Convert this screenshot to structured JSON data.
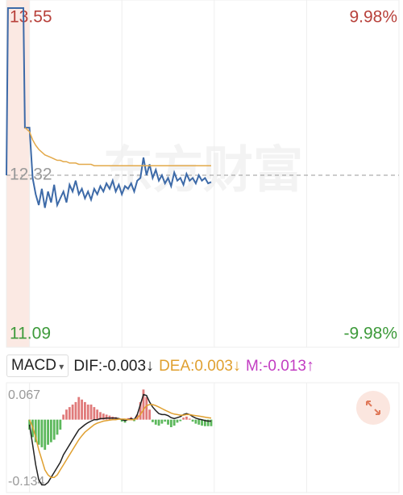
{
  "chart_data": [
    {
      "type": "line",
      "watermark": "东方财富",
      "xlim": [
        -15,
        240
      ],
      "xgrid": [
        0,
        60,
        120,
        180,
        240
      ],
      "ylim": [
        11.09,
        13.55
      ],
      "yticks": [
        13.55,
        12.32,
        11.09
      ],
      "ref_line": 12.32,
      "y2lim": [
        -9.98,
        9.98
      ],
      "y2ticks": [
        {
          "value": 9.98,
          "label": "9.98%"
        },
        {
          "value": -9.98,
          "label": "-9.98%"
        }
      ],
      "x": [
        -15,
        -14,
        -4,
        -3,
        0,
        2,
        4,
        6,
        8,
        10,
        12,
        14,
        16,
        18,
        20,
        22,
        24,
        26,
        28,
        30,
        32,
        34,
        36,
        38,
        40,
        42,
        44,
        46,
        48,
        50,
        52,
        54,
        56,
        58,
        60,
        62,
        64,
        66,
        68,
        70,
        72,
        74,
        76,
        78,
        80,
        82,
        84,
        86,
        88,
        90,
        92,
        94,
        96,
        98,
        100,
        102,
        104,
        106,
        108,
        110,
        112,
        114,
        116,
        118
      ],
      "series": [
        {
          "color": "#3d6aa8",
          "values": [
            12.32,
            13.55,
            13.55,
            12.67,
            12.67,
            12.3,
            12.18,
            12.1,
            12.22,
            12.08,
            12.2,
            12.12,
            12.25,
            12.1,
            12.15,
            12.2,
            12.12,
            12.25,
            12.2,
            12.28,
            12.18,
            12.22,
            12.15,
            12.2,
            12.14,
            12.22,
            12.18,
            12.24,
            12.2,
            12.26,
            12.22,
            12.28,
            12.2,
            12.25,
            12.18,
            12.24,
            12.22,
            12.26,
            12.2,
            12.28,
            12.3,
            12.45,
            12.32,
            12.4,
            12.3,
            12.36,
            12.28,
            12.32,
            12.26,
            12.3,
            12.24,
            12.34,
            12.28,
            12.3,
            12.25,
            12.33,
            12.28,
            12.3,
            12.26,
            12.32,
            12.28,
            12.3,
            12.26,
            12.27
          ]
        },
        {
          "color": "#e3a94a",
          "values": [
            null,
            null,
            null,
            12.67,
            12.64,
            12.58,
            12.54,
            12.51,
            12.49,
            12.47,
            12.46,
            12.45,
            12.44,
            12.43,
            12.43,
            12.42,
            12.42,
            12.41,
            12.41,
            12.41,
            12.4,
            12.4,
            12.4,
            12.4,
            12.4,
            12.39,
            12.39,
            12.39,
            12.39,
            12.39,
            12.39,
            12.39,
            12.39,
            12.39,
            12.39,
            12.39,
            12.39,
            12.39,
            12.39,
            12.39,
            12.39,
            12.39,
            12.39,
            12.39,
            12.39,
            12.39,
            12.39,
            12.39,
            12.39,
            12.39,
            12.39,
            12.39,
            12.39,
            12.39,
            12.39,
            12.39,
            12.39,
            12.39,
            12.39,
            12.39,
            12.39,
            12.39,
            12.39,
            12.39
          ]
        }
      ]
    },
    {
      "type": "macd",
      "indicator": "MACD",
      "legend": [
        {
          "text": "DIF:-0.003",
          "arrow": "↓",
          "color": "#222222"
        },
        {
          "text": "DEA:0.003",
          "arrow": "↓",
          "color": "#e0a030"
        },
        {
          "text": "M:-0.013",
          "arrow": "↑",
          "color": "#c23cc2"
        }
      ],
      "xlim": [
        -15,
        240
      ],
      "xgrid": [
        0,
        60,
        120,
        180,
        240
      ],
      "ylim": [
        -0.134,
        0.067
      ],
      "yticks": [
        0.067,
        -0.134
      ],
      "x": [
        0,
        2,
        4,
        6,
        8,
        10,
        12,
        14,
        16,
        18,
        20,
        22,
        24,
        26,
        28,
        30,
        32,
        34,
        36,
        38,
        40,
        42,
        44,
        46,
        48,
        50,
        52,
        54,
        56,
        58,
        60,
        62,
        64,
        66,
        68,
        70,
        72,
        74,
        76,
        78,
        80,
        82,
        84,
        86,
        88,
        90,
        92,
        94,
        96,
        98,
        100,
        102,
        104,
        106,
        108,
        110,
        112,
        114,
        116,
        118
      ],
      "series": [
        {
          "name": "M",
          "up_color": "#e07a7a",
          "down_color": "#5cb85c",
          "values": [
            -0.02,
            -0.035,
            -0.045,
            -0.05,
            -0.055,
            -0.06,
            -0.05,
            -0.045,
            -0.04,
            -0.03,
            -0.02,
            0.01,
            0.02,
            0.025,
            0.03,
            0.035,
            0.045,
            0.04,
            0.035,
            0.03,
            0.03,
            0.025,
            0.02,
            0.015,
            0.012,
            0.01,
            0.008,
            0.006,
            0.005,
            0.003,
            -0.004,
            -0.006,
            0.003,
            0.005,
            -0.003,
            0.01,
            0.035,
            0.06,
            0.045,
            0.02,
            -0.005,
            -0.01,
            -0.012,
            -0.008,
            -0.004,
            -0.01,
            -0.015,
            -0.012,
            -0.006,
            -0.003,
            0.004,
            0.006,
            0.002,
            -0.004,
            -0.008,
            -0.01,
            -0.012,
            -0.013,
            -0.013,
            -0.013
          ]
        },
        {
          "name": "DIF",
          "color": "#222222",
          "values": [
            -0.01,
            -0.05,
            -0.09,
            -0.12,
            -0.13,
            -0.13,
            -0.125,
            -0.115,
            -0.105,
            -0.095,
            -0.085,
            -0.07,
            -0.06,
            -0.05,
            -0.04,
            -0.03,
            -0.02,
            -0.015,
            -0.01,
            -0.006,
            -0.003,
            0,
            0,
            0.002,
            0.002,
            0.003,
            0.003,
            0.003,
            0.003,
            0.002,
            0,
            -0.002,
            0,
            0.002,
            0,
            0.01,
            0.03,
            0.05,
            0.048,
            0.035,
            0.025,
            0.018,
            0.012,
            0.01,
            0.01,
            0.008,
            0.004,
            0.002,
            0.004,
            0.006,
            0.01,
            0.012,
            0.01,
            0.006,
            0.003,
            0.001,
            0,
            -0.002,
            -0.003,
            -0.003
          ]
        },
        {
          "name": "DEA",
          "color": "#e0a030",
          "values": [
            0,
            -0.015,
            -0.035,
            -0.06,
            -0.08,
            -0.1,
            -0.11,
            -0.115,
            -0.115,
            -0.11,
            -0.1,
            -0.09,
            -0.08,
            -0.07,
            -0.06,
            -0.05,
            -0.04,
            -0.032,
            -0.025,
            -0.02,
            -0.015,
            -0.01,
            -0.007,
            -0.005,
            -0.003,
            -0.002,
            -0.001,
            0,
            0,
            0.001,
            0.001,
            0.001,
            0,
            0,
            0,
            0.003,
            0.01,
            0.02,
            0.028,
            0.03,
            0.03,
            0.028,
            0.025,
            0.022,
            0.019,
            0.016,
            0.013,
            0.011,
            0.01,
            0.009,
            0.009,
            0.01,
            0.01,
            0.009,
            0.008,
            0.007,
            0.006,
            0.005,
            0.004,
            0.003
          ]
        }
      ]
    }
  ]
}
